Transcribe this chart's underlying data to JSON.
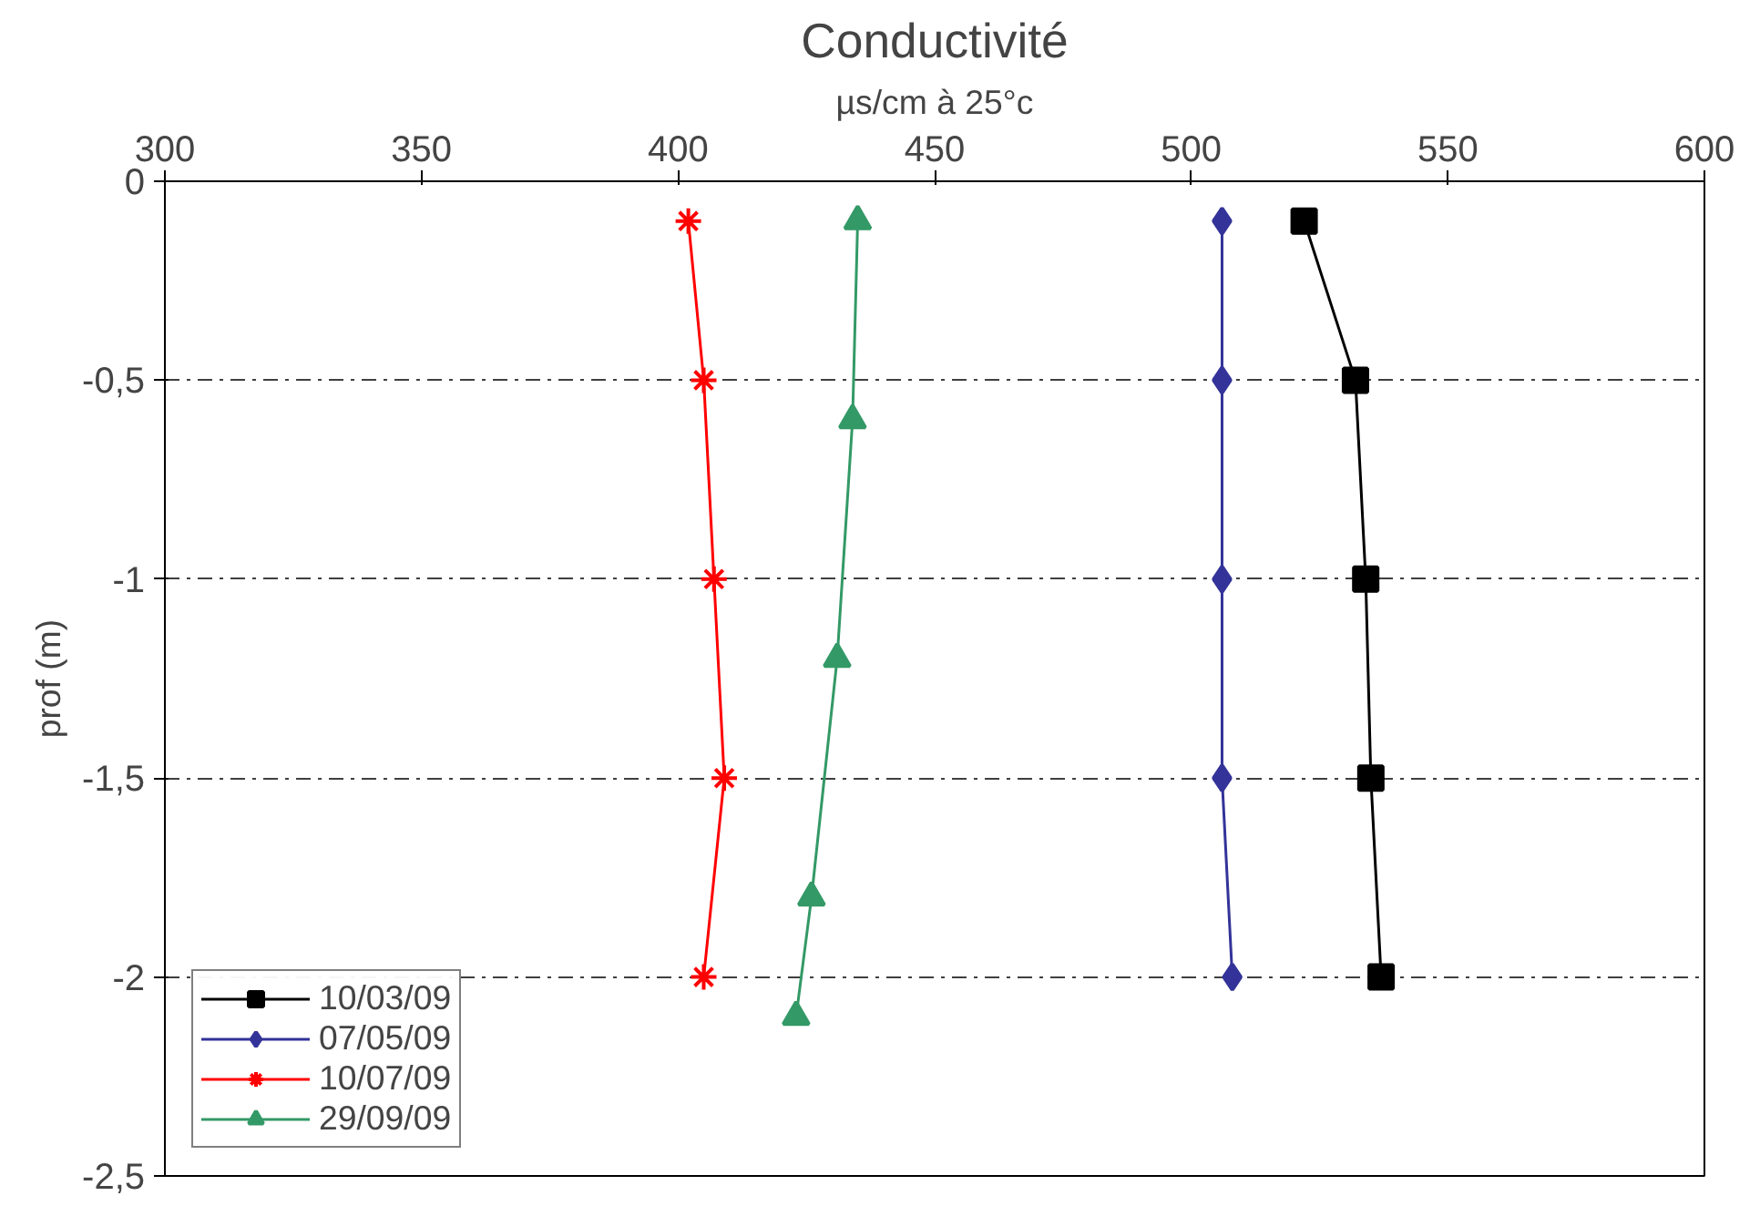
{
  "chart_data": {
    "type": "line",
    "title": "Conductivité",
    "xlabel": "µs/cm à 25°c",
    "ylabel": "prof (m)",
    "xlim": [
      300,
      600
    ],
    "xticks": [
      300,
      350,
      400,
      450,
      500,
      550,
      600
    ],
    "ylim": [
      -2.5,
      0
    ],
    "yticks": [
      {
        "value": 0,
        "label": "0"
      },
      {
        "value": -0.5,
        "label": "-0,5"
      },
      {
        "value": -1,
        "label": "-1"
      },
      {
        "value": -1.5,
        "label": "-1,5"
      },
      {
        "value": -2,
        "label": "-2"
      },
      {
        "value": -2.5,
        "label": "-2,5"
      }
    ],
    "grid": "y",
    "legend": "bottom left",
    "series": [
      {
        "name": "10/03/09",
        "color": "#000000",
        "marker": "square",
        "x": [
          522,
          532,
          534,
          535,
          537
        ],
        "values": [
          -0.1,
          -0.5,
          -1,
          -1.5,
          -2
        ]
      },
      {
        "name": "07/05/09",
        "color": "#333399",
        "marker": "diamond",
        "x": [
          506,
          506,
          506,
          506,
          508
        ],
        "values": [
          -0.1,
          -0.5,
          -1,
          -1.5,
          -2
        ]
      },
      {
        "name": "10/07/09",
        "color": "#ff0000",
        "marker": "cross",
        "x": [
          402,
          405,
          407,
          409,
          405
        ],
        "values": [
          -0.1,
          -0.5,
          -1,
          -1.5,
          -2
        ]
      },
      {
        "name": "29/09/09",
        "color": "#339966",
        "marker": "triangle",
        "x": [
          435,
          434,
          431,
          426,
          423
        ],
        "values": [
          -0.1,
          -0.6,
          -1.2,
          -1.8,
          -2.1
        ]
      }
    ]
  }
}
